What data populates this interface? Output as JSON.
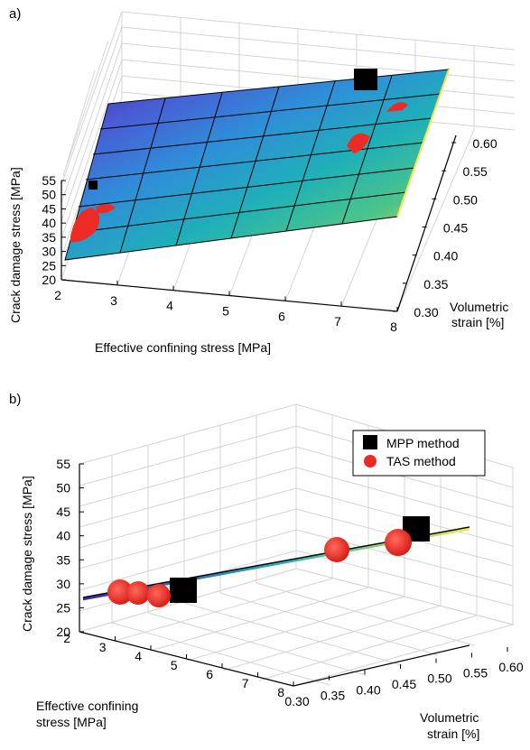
{
  "chart_data": [
    {
      "panel": "a)",
      "type": "surface-3d",
      "xlabel": "Effective confining stress [MPa]",
      "ylabel": "Volumetric strain [%]",
      "zlabel": "Crack damage stress [MPa]",
      "x_ticks": [
        "2",
        "3",
        "4",
        "5",
        "6",
        "7",
        "8"
      ],
      "y_ticks": [
        "0.30",
        "0.35",
        "0.40",
        "0.45",
        "0.50",
        "0.55",
        "0.60"
      ],
      "z_ticks": [
        "20",
        "25",
        "30",
        "35",
        "40",
        "45",
        "50",
        "55"
      ],
      "xlim": [
        2,
        8
      ],
      "ylim": [
        0.3,
        0.6
      ],
      "zlim": [
        20,
        55
      ],
      "grid": true,
      "colormap": [
        "#3e26a8",
        "#4a5bd4",
        "#2f8ed8",
        "#1fb0b8",
        "#4cc48a",
        "#a8d05a",
        "#f0e640"
      ],
      "series": [
        {
          "name": "MPP method",
          "marker": "square",
          "color": "#000000",
          "points": [
            {
              "x": 2.2,
              "y": 0.36,
              "z": 31.0
            },
            {
              "x": 7.6,
              "y": 0.56,
              "z": 41.0
            }
          ]
        },
        {
          "name": "TAS method",
          "marker": "circle",
          "color": "#ee2a24",
          "points": [
            {
              "x": 2.1,
              "y": 0.31,
              "z": 29.5
            },
            {
              "x": 2.3,
              "y": 0.33,
              "z": 30.0
            },
            {
              "x": 2.6,
              "y": 0.34,
              "z": 30.5
            },
            {
              "x": 2.4,
              "y": 0.35,
              "z": 31.0
            },
            {
              "x": 6.4,
              "y": 0.5,
              "z": 38.5
            },
            {
              "x": 7.6,
              "y": 0.54,
              "z": 40.0
            }
          ]
        }
      ]
    },
    {
      "panel": "b)",
      "type": "scatter-3d",
      "xlabel": "Effective confining stress [MPa]",
      "ylabel": "Volumetric strain [%]",
      "zlabel": "Crack damage stress [MPa]",
      "x_ticks": [
        "2",
        "3",
        "4",
        "5",
        "6",
        "7",
        "8"
      ],
      "y_ticks": [
        "0.30",
        "0.35",
        "0.40",
        "0.45",
        "0.50",
        "0.55",
        "0.60"
      ],
      "z_ticks": [
        "20",
        "25",
        "30",
        "35",
        "40",
        "45",
        "50",
        "55"
      ],
      "xlim": [
        2,
        8
      ],
      "ylim": [
        0.3,
        0.6
      ],
      "zlim": [
        20,
        55
      ],
      "grid": true,
      "legend": {
        "position": "top-right",
        "entries": [
          "MPP method",
          "TAS method"
        ]
      },
      "series": [
        {
          "name": "MPP method",
          "marker": "square",
          "color": "#000000",
          "points": [
            {
              "x": 2.2,
              "y": 0.36,
              "z": 31.0
            },
            {
              "x": 7.6,
              "y": 0.56,
              "z": 41.0
            }
          ]
        },
        {
          "name": "TAS method",
          "marker": "circle",
          "color": "#ee2a24",
          "points": [
            {
              "x": 2.1,
              "y": 0.31,
              "z": 29.5
            },
            {
              "x": 2.3,
              "y": 0.33,
              "z": 30.0
            },
            {
              "x": 2.6,
              "y": 0.34,
              "z": 30.5
            },
            {
              "x": 2.4,
              "y": 0.35,
              "z": 31.0
            },
            {
              "x": 6.4,
              "y": 0.5,
              "z": 38.5
            },
            {
              "x": 7.6,
              "y": 0.54,
              "z": 40.0
            }
          ]
        }
      ]
    }
  ]
}
